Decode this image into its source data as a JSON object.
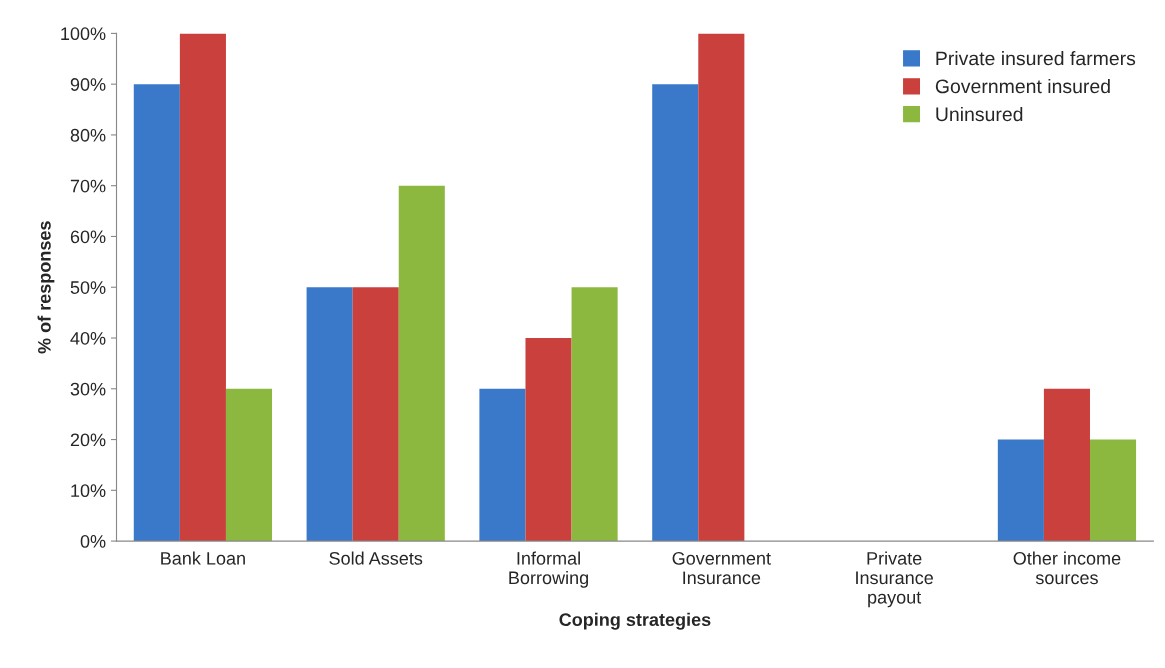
{
  "chart_data": {
    "type": "bar",
    "xlabel": "Coping strategies",
    "ylabel": "% of responses",
    "categories": [
      "Bank Loan",
      "Sold Assets",
      "Informal\nBorrowing",
      "Government\nInsurance",
      "Private\nInsurance\npayout",
      "Other income\nsources"
    ],
    "series": [
      {
        "name": "Private insured farmers",
        "color": "#3a78c9",
        "values": [
          90,
          50,
          30,
          90,
          0,
          20
        ]
      },
      {
        "name": "Government insured",
        "color": "#c9403c",
        "values": [
          100,
          50,
          40,
          100,
          0,
          30
        ]
      },
      {
        "name": "Uninsured",
        "color": "#8db840",
        "values": [
          30,
          70,
          50,
          0,
          0,
          20
        ]
      }
    ],
    "ylim": [
      0,
      100
    ],
    "yticks": [
      {
        "value": 0,
        "label": "0%"
      },
      {
        "value": 10,
        "label": "10%"
      },
      {
        "value": 20,
        "label": "20%"
      },
      {
        "value": 30,
        "label": "30%"
      },
      {
        "value": 40,
        "label": "40%"
      },
      {
        "value": 50,
        "label": "50%"
      },
      {
        "value": 60,
        "label": "60%"
      },
      {
        "value": 70,
        "label": "70%"
      },
      {
        "value": 80,
        "label": "80%"
      },
      {
        "value": 90,
        "label": "90%"
      },
      {
        "value": 100,
        "label": "100%"
      }
    ],
    "grid": false,
    "legend": "top right"
  }
}
